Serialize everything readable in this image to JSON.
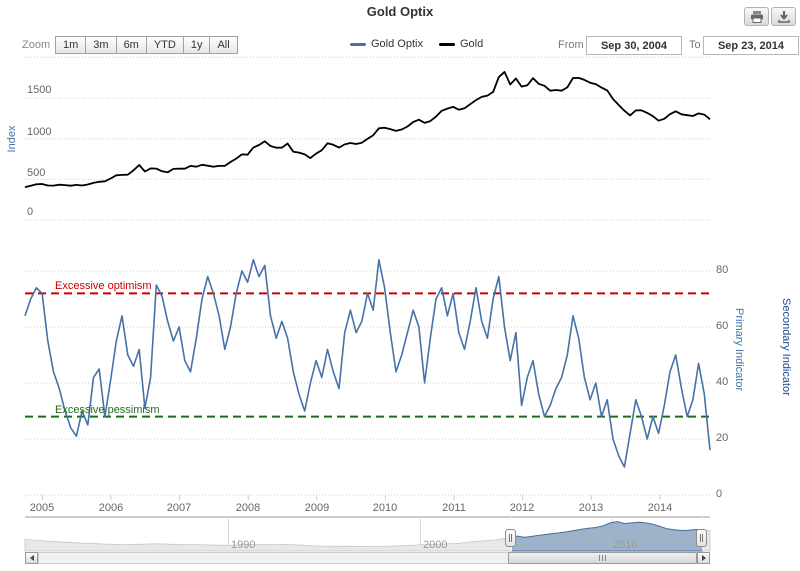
{
  "header": {
    "title": "Gold Optix"
  },
  "toolbar": {
    "print_icon": "printer-icon",
    "download_icon": "download-icon"
  },
  "controls": {
    "zoom_label": "Zoom",
    "zoom_buttons": [
      "1m",
      "3m",
      "6m",
      "YTD",
      "1y",
      "All"
    ],
    "from_label": "From",
    "from_value": "Sep 30, 2004",
    "to_label": "To",
    "to_value": "Sep 23, 2014"
  },
  "legend": {
    "items": [
      {
        "label": "Gold Optix",
        "color": "#4572A7"
      },
      {
        "label": "Gold",
        "color": "#000000"
      }
    ]
  },
  "xaxis": {
    "labels": [
      "2005",
      "2006",
      "2007",
      "2008",
      "2009",
      "2010",
      "2011",
      "2012",
      "2013",
      "2014"
    ],
    "positions_years": [
      2005,
      2006,
      2007,
      2008,
      2009,
      2010,
      2011,
      2012,
      2013,
      2014
    ]
  },
  "colors": {
    "optix_line": "#4572A7",
    "gold_line": "#000000",
    "grid": "#cccccc",
    "optimism_line": "#CC0000",
    "pessimism_line": "#1E6B1E",
    "axis_title_primary": "#4572A7",
    "axis_title_secondary": "#1A4B8C",
    "navigator_selected_fill": "rgba(69,114,167,0.45)",
    "navigator_unselected_fill": "#e8e8e8"
  },
  "chart_data": [
    {
      "type": "line",
      "pane": "top",
      "title": "Gold price",
      "ylabel": "Index",
      "yticks": [
        0,
        500,
        1000,
        1500
      ],
      "ytick_labels": [
        "1500",
        "1000",
        "500",
        "0"
      ],
      "ylim": [
        0,
        2000
      ],
      "x_start": 2004.747,
      "x_end": 2014.73,
      "grid": true,
      "series": [
        {
          "name": "Gold",
          "color": "#000000",
          "values": [
            405,
            420,
            439,
            442,
            424,
            423,
            434,
            429,
            422,
            431,
            424,
            437,
            456,
            470,
            476,
            510,
            550,
            555,
            557,
            611,
            676,
            596,
            634,
            632,
            599,
            586,
            628,
            630,
            631,
            665,
            655,
            679,
            667,
            655,
            665,
            665,
            713,
            755,
            806,
            803,
            890,
            922,
            968,
            910,
            889,
            889,
            940,
            839,
            829,
            807,
            761,
            816,
            858,
            943,
            924,
            890,
            929,
            946,
            934,
            950,
            997,
            1043,
            1127,
            1135,
            1118,
            1095,
            1113,
            1149,
            1205,
            1233,
            1193,
            1216,
            1271,
            1342,
            1370,
            1391,
            1356,
            1373,
            1424,
            1474,
            1513,
            1529,
            1573,
            1756,
            1820,
            1666,
            1739,
            1640,
            1656,
            1743,
            1674,
            1650,
            1589,
            1598,
            1590,
            1630,
            1745,
            1747,
            1722,
            1688,
            1671,
            1628,
            1593,
            1487,
            1414,
            1343,
            1286,
            1347,
            1348,
            1316,
            1276,
            1221,
            1244,
            1301,
            1336,
            1299,
            1288,
            1279,
            1311,
            1296,
            1238
          ]
        }
      ]
    },
    {
      "type": "line",
      "pane": "bottom",
      "title": "Gold Optix sentiment",
      "right_axis_titles": [
        "Primary Indicator",
        "Secondary Indicator"
      ],
      "yticks": [
        0,
        20,
        40,
        60,
        80
      ],
      "ytick_labels": [
        "80",
        "60",
        "40",
        "20",
        "0"
      ],
      "ylim": [
        0,
        85
      ],
      "x_start": 2004.747,
      "x_end": 2014.73,
      "grid": true,
      "plot_lines": [
        {
          "value": 72,
          "label": "Excessive optimism",
          "color": "#CC0000",
          "dash": "dashed"
        },
        {
          "value": 28,
          "label": "Excessive pessimism",
          "color": "#1E6B1E",
          "dash": "dashed"
        }
      ],
      "series": [
        {
          "name": "Gold Optix",
          "color": "#4572A7",
          "values": [
            64,
            70,
            74,
            72,
            55,
            44,
            38,
            30,
            24,
            21,
            30,
            25,
            42,
            45,
            28,
            41,
            55,
            64,
            50,
            46,
            52,
            31,
            42,
            75,
            71,
            62,
            55,
            60,
            48,
            44,
            56,
            70,
            78,
            72,
            64,
            52,
            60,
            72,
            80,
            76,
            84,
            78,
            82,
            64,
            56,
            62,
            56,
            44,
            36,
            30,
            40,
            48,
            42,
            52,
            44,
            38,
            58,
            66,
            58,
            62,
            72,
            66,
            84,
            74,
            58,
            44,
            50,
            58,
            66,
            60,
            40,
            56,
            70,
            74,
            64,
            72,
            58,
            52,
            62,
            74,
            62,
            56,
            70,
            78,
            60,
            48,
            58,
            32,
            42,
            48,
            36,
            28,
            32,
            38,
            42,
            50,
            64,
            56,
            42,
            34,
            40,
            28,
            34,
            20,
            14,
            10,
            22,
            34,
            28,
            20,
            28,
            22,
            32,
            44,
            50,
            38,
            28,
            34,
            47,
            36,
            16
          ]
        }
      ]
    },
    {
      "type": "area",
      "pane": "navigator",
      "title": "Gold full history navigator",
      "x_start": 1979.4,
      "x_end": 2015.1,
      "xticks": [
        1990,
        2000,
        2010
      ],
      "xtick_labels": [
        "1990",
        "2000",
        "2010"
      ],
      "selected_range": {
        "from": 2004.747,
        "to": 2014.73
      },
      "series": [
        {
          "name": "Gold",
          "values": [
            700,
            668,
            636,
            606,
            578,
            551,
            526,
            502,
            480,
            459,
            440,
            423,
            408,
            396,
            388,
            394,
            406,
            420,
            434,
            428,
            414,
            399,
            392,
            396,
            388,
            374,
            361,
            351,
            344,
            352,
            364,
            377,
            386,
            383,
            380,
            386,
            392,
            383,
            371,
            351,
            327,
            305,
            294,
            290,
            285,
            291,
            284,
            274,
            268,
            264,
            273,
            291,
            307,
            321,
            339,
            363,
            389,
            401,
            416,
            433,
            449,
            473,
            521,
            581,
            613,
            641,
            669,
            741,
            821,
            901,
            821,
            881,
            941,
            1001,
            1061,
            1101,
            1161,
            1241,
            1321,
            1381,
            1421,
            1521,
            1701,
            1781,
            1661,
            1701,
            1741,
            1701,
            1621,
            1481,
            1341,
            1281,
            1241,
            1261,
            1301,
            1271,
            1231
          ]
        }
      ]
    }
  ]
}
